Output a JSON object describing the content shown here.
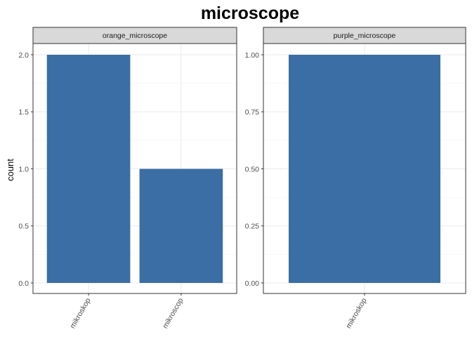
{
  "chart_data": {
    "type": "bar",
    "title": "microscope",
    "ylabel": "count",
    "xlabel": "",
    "grid": true,
    "bar_color": "#3A6EA5",
    "strip_fill": "#D9D9D9",
    "panels": [
      {
        "name": "orange_microscope",
        "categories": [
          "mikroskop",
          "mikroscop"
        ],
        "values": [
          2,
          1
        ],
        "ylim": [
          0,
          2
        ],
        "yticks": [
          "0.0",
          "0.5",
          "1.0",
          "1.5",
          "2.0"
        ]
      },
      {
        "name": "purple_microscope",
        "categories": [
          "mikroskop"
        ],
        "values": [
          1
        ],
        "ylim": [
          0,
          1
        ],
        "yticks": [
          "0.00",
          "0.25",
          "0.50",
          "0.75",
          "1.00"
        ]
      }
    ]
  }
}
